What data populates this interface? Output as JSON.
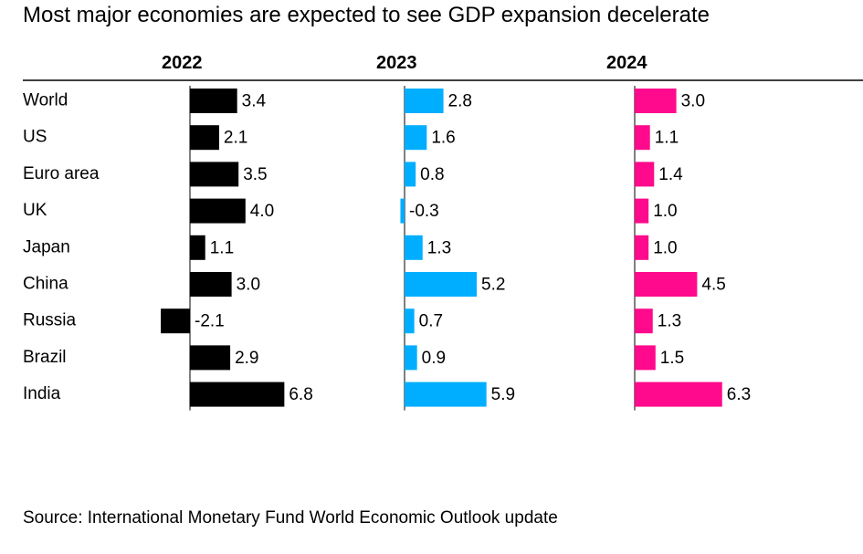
{
  "title": "Most major economies are expected to see GDP expansion decelerate",
  "source": "Source: International Monetary Fund World Economic Outlook update",
  "colors": {
    "2022": "#000000",
    "2023": "#00aeff",
    "2024": "#ff0a8c"
  },
  "chart_data": {
    "type": "bar",
    "categories": [
      "World",
      "US",
      "Euro area",
      "UK",
      "Japan",
      "China",
      "Russia",
      "Brazil",
      "India"
    ],
    "series": [
      {
        "name": "2022",
        "values": [
          3.4,
          2.1,
          3.5,
          4.0,
          1.1,
          3.0,
          -2.1,
          2.9,
          6.8
        ]
      },
      {
        "name": "2023",
        "values": [
          2.8,
          1.6,
          0.8,
          -0.3,
          1.3,
          5.2,
          0.7,
          0.9,
          5.9
        ]
      },
      {
        "name": "2024",
        "values": [
          3.0,
          1.1,
          1.4,
          1.0,
          1.0,
          4.5,
          1.3,
          1.5,
          6.3
        ]
      }
    ],
    "value_labels": [
      [
        "3.4",
        "2.1",
        "3.5",
        "4.0",
        "1.1",
        "3.0",
        "-2.1",
        "2.9",
        "6.8"
      ],
      [
        "2.8",
        "1.6",
        "0.8",
        "-0.3",
        "1.3",
        "5.2",
        "0.7",
        "0.9",
        "5.9"
      ],
      [
        "3.0",
        "1.1",
        "1.4",
        "1.0",
        "1.0",
        "4.5",
        "1.3",
        "1.5",
        "6.3"
      ]
    ],
    "orientation": "horizontal",
    "layout": "small-multiples",
    "grid": false,
    "legend": "none"
  }
}
